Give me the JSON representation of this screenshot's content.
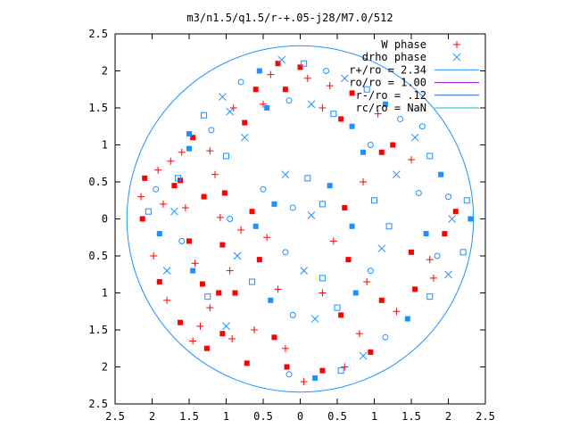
{
  "chart_data": {
    "type": "scatter",
    "title": "m3/n1.5/q1.5/r-+.05-j28/M7.0/512",
    "xlabel": "",
    "ylabel": "",
    "xlim": [
      -2.5,
      2.5
    ],
    "ylim": [
      -2.5,
      2.5
    ],
    "x_ticks": [
      {
        "value": -2.5,
        "label": "2.5"
      },
      {
        "value": -2.0,
        "label": "2"
      },
      {
        "value": -1.5,
        "label": "1.5"
      },
      {
        "value": -1.0,
        "label": "1"
      },
      {
        "value": -0.5,
        "label": "0.5"
      },
      {
        "value": 0.0,
        "label": "0"
      },
      {
        "value": 0.5,
        "label": "0.5"
      },
      {
        "value": 1.0,
        "label": "1"
      },
      {
        "value": 1.5,
        "label": "1.5"
      },
      {
        "value": 2.0,
        "label": "2"
      },
      {
        "value": 2.5,
        "label": "2.5"
      }
    ],
    "y_ticks": [
      {
        "value": 2.5,
        "label": "2.5"
      },
      {
        "value": 2.0,
        "label": "2"
      },
      {
        "value": 1.5,
        "label": "1.5"
      },
      {
        "value": 1.0,
        "label": "1"
      },
      {
        "value": 0.5,
        "label": "0.5"
      },
      {
        "value": 0.0,
        "label": "0"
      },
      {
        "value": -0.5,
        "label": "0.5"
      },
      {
        "value": -1.0,
        "label": "1"
      },
      {
        "value": -1.5,
        "label": "1.5"
      },
      {
        "value": -2.0,
        "label": "2"
      },
      {
        "value": -2.5,
        "label": "2.5"
      }
    ],
    "grid": false,
    "legend_position": "top-right",
    "legend": [
      {
        "label": "W phase",
        "symbol": "plus",
        "color": "#ff0000"
      },
      {
        "label": "drho phase",
        "symbol": "cross",
        "color": "#1e90ff"
      },
      {
        "label": "r+/ro = 2.34",
        "symbol": "line",
        "color": "#1e90ff"
      },
      {
        "label": "ro/ro = 1.00",
        "symbol": "line",
        "color": "#9400d3"
      },
      {
        "label": "r-/ro = .12",
        "symbol": "line",
        "color": "#1e63c8"
      },
      {
        "label": "rc/ro = NaN",
        "symbol": "line",
        "color": "#00c0c0"
      }
    ],
    "circles": [
      {
        "radius": 2.34,
        "color": "#1e90ff"
      }
    ],
    "series": [
      {
        "name": "W phase",
        "color": "#ff0000",
        "markers": [
          "plus",
          "filled-square"
        ],
        "points": [
          [
            -1.92,
            0.66
          ],
          [
            -2.1,
            0.55
          ],
          [
            -2.15,
            0.3
          ],
          [
            -2.13,
            0.0
          ],
          [
            -1.98,
            -0.5
          ],
          [
            -1.9,
            -0.85
          ],
          [
            -1.8,
            -1.1
          ],
          [
            -1.62,
            -1.4
          ],
          [
            -1.45,
            -1.65
          ],
          [
            -1.26,
            -1.75
          ],
          [
            -1.75,
            0.78
          ],
          [
            -1.62,
            0.52
          ],
          [
            -1.55,
            0.15
          ],
          [
            -1.5,
            -0.3
          ],
          [
            -1.42,
            -0.6
          ],
          [
            -1.32,
            -0.88
          ],
          [
            -1.22,
            -1.2
          ],
          [
            -1.05,
            -1.55
          ],
          [
            -0.92,
            -1.62
          ],
          [
            -0.72,
            -1.95
          ],
          [
            -1.15,
            0.6
          ],
          [
            -1.02,
            0.35
          ],
          [
            -1.08,
            0.02
          ],
          [
            -1.05,
            -0.35
          ],
          [
            -0.95,
            -0.7
          ],
          [
            -0.88,
            -1.0
          ],
          [
            -0.62,
            -1.5
          ],
          [
            -0.35,
            -1.6
          ],
          [
            -0.2,
            -1.75
          ],
          [
            -0.18,
            -2.0
          ],
          [
            -1.22,
            0.92
          ],
          [
            -1.45,
            1.1
          ],
          [
            -1.6,
            0.9
          ],
          [
            -0.75,
            1.3
          ],
          [
            -0.5,
            1.55
          ],
          [
            -0.2,
            1.75
          ],
          [
            0.1,
            1.9
          ],
          [
            -0.3,
            2.1
          ],
          [
            0.3,
            1.5
          ],
          [
            0.55,
            1.35
          ],
          [
            -0.9,
            1.5
          ],
          [
            -0.6,
            1.75
          ],
          [
            -0.4,
            1.95
          ],
          [
            0.0,
            2.05
          ],
          [
            0.4,
            1.8
          ],
          [
            0.7,
            1.7
          ],
          [
            1.05,
            1.42
          ],
          [
            1.25,
            1.0
          ],
          [
            1.5,
            0.8
          ],
          [
            1.1,
            0.9
          ],
          [
            0.85,
            0.5
          ],
          [
            0.6,
            0.15
          ],
          [
            0.45,
            -0.3
          ],
          [
            0.65,
            -0.55
          ],
          [
            0.9,
            -0.85
          ],
          [
            1.1,
            -1.1
          ],
          [
            1.3,
            -1.25
          ],
          [
            1.55,
            -0.95
          ],
          [
            1.75,
            -0.55
          ],
          [
            1.95,
            -0.2
          ],
          [
            0.3,
            -1.0
          ],
          [
            0.55,
            -1.3
          ],
          [
            0.8,
            -1.55
          ],
          [
            0.95,
            -1.8
          ],
          [
            0.6,
            -2.0
          ],
          [
            0.3,
            -2.05
          ],
          [
            0.05,
            -2.2
          ],
          [
            1.5,
            -0.45
          ],
          [
            1.8,
            -0.8
          ],
          [
            2.1,
            0.1
          ],
          [
            -1.35,
            -1.45
          ],
          [
            -1.1,
            -1.0
          ],
          [
            -0.8,
            -0.15
          ],
          [
            -0.65,
            0.1
          ],
          [
            -0.45,
            -0.25
          ],
          [
            -0.55,
            -0.55
          ],
          [
            -0.3,
            -0.95
          ],
          [
            -1.7,
            0.45
          ],
          [
            -1.85,
            0.2
          ],
          [
            -1.3,
            0.3
          ]
        ]
      },
      {
        "name": "drho phase",
        "color": "#1e90ff",
        "markers": [
          "cross",
          "open-square",
          "filled-square",
          "open-circle"
        ],
        "points": [
          [
            -0.25,
            2.15
          ],
          [
            0.05,
            2.1
          ],
          [
            -0.55,
            2.0
          ],
          [
            -0.8,
            1.85
          ],
          [
            -1.05,
            1.65
          ],
          [
            -1.3,
            1.4
          ],
          [
            -1.5,
            1.15
          ],
          [
            0.35,
            2.0
          ],
          [
            0.6,
            1.9
          ],
          [
            0.9,
            1.75
          ],
          [
            1.15,
            1.55
          ],
          [
            1.35,
            1.35
          ],
          [
            1.55,
            1.1
          ],
          [
            1.75,
            0.85
          ],
          [
            1.9,
            0.6
          ],
          [
            2.0,
            0.3
          ],
          [
            2.05,
            0.0
          ],
          [
            2.25,
            0.25
          ],
          [
            -0.45,
            1.5
          ],
          [
            -0.15,
            1.6
          ],
          [
            0.15,
            1.55
          ],
          [
            0.45,
            1.42
          ],
          [
            0.7,
            1.25
          ],
          [
            0.95,
            1.0
          ],
          [
            -0.75,
            1.1
          ],
          [
            -1.0,
            0.85
          ],
          [
            -0.35,
            0.2
          ],
          [
            -0.1,
            0.15
          ],
          [
            0.15,
            0.05
          ],
          [
            0.3,
            0.2
          ],
          [
            -0.6,
            -0.1
          ],
          [
            -0.5,
            0.4
          ],
          [
            -0.2,
            0.6
          ],
          [
            0.1,
            0.55
          ],
          [
            0.4,
            0.45
          ],
          [
            -0.95,
            0.0
          ],
          [
            -0.85,
            -0.5
          ],
          [
            -0.65,
            -0.85
          ],
          [
            -0.4,
            -1.1
          ],
          [
            -0.1,
            -1.3
          ],
          [
            0.2,
            -1.35
          ],
          [
            0.5,
            -1.2
          ],
          [
            0.75,
            -1.0
          ],
          [
            0.95,
            -0.7
          ],
          [
            1.1,
            -0.4
          ],
          [
            1.2,
            -0.1
          ],
          [
            1.7,
            -0.2
          ],
          [
            1.85,
            -0.5
          ],
          [
            2.0,
            -0.75
          ],
          [
            1.75,
            -1.05
          ],
          [
            1.45,
            -1.35
          ],
          [
            1.15,
            -1.6
          ],
          [
            0.85,
            -1.85
          ],
          [
            0.55,
            -2.05
          ],
          [
            0.2,
            -2.15
          ],
          [
            -0.15,
            -2.1
          ],
          [
            -1.0,
            -1.45
          ],
          [
            -1.25,
            -1.05
          ],
          [
            -1.45,
            -0.7
          ],
          [
            -1.6,
            -0.3
          ],
          [
            -1.7,
            0.1
          ],
          [
            -1.65,
            0.55
          ],
          [
            -1.5,
            0.95
          ],
          [
            -1.2,
            1.2
          ],
          [
            -0.95,
            1.45
          ],
          [
            2.2,
            -0.45
          ],
          [
            2.3,
            0.0
          ],
          [
            1.6,
            0.35
          ],
          [
            1.3,
            0.6
          ],
          [
            1.0,
            0.25
          ],
          [
            0.7,
            -0.1
          ],
          [
            -0.2,
            -0.45
          ],
          [
            0.05,
            -0.7
          ],
          [
            0.3,
            -0.8
          ],
          [
            -1.9,
            -0.2
          ],
          [
            -1.95,
            0.4
          ],
          [
            -1.8,
            -0.7
          ],
          [
            -2.05,
            0.1
          ],
          [
            0.85,
            0.9
          ],
          [
            1.65,
            1.25
          ]
        ]
      }
    ]
  }
}
